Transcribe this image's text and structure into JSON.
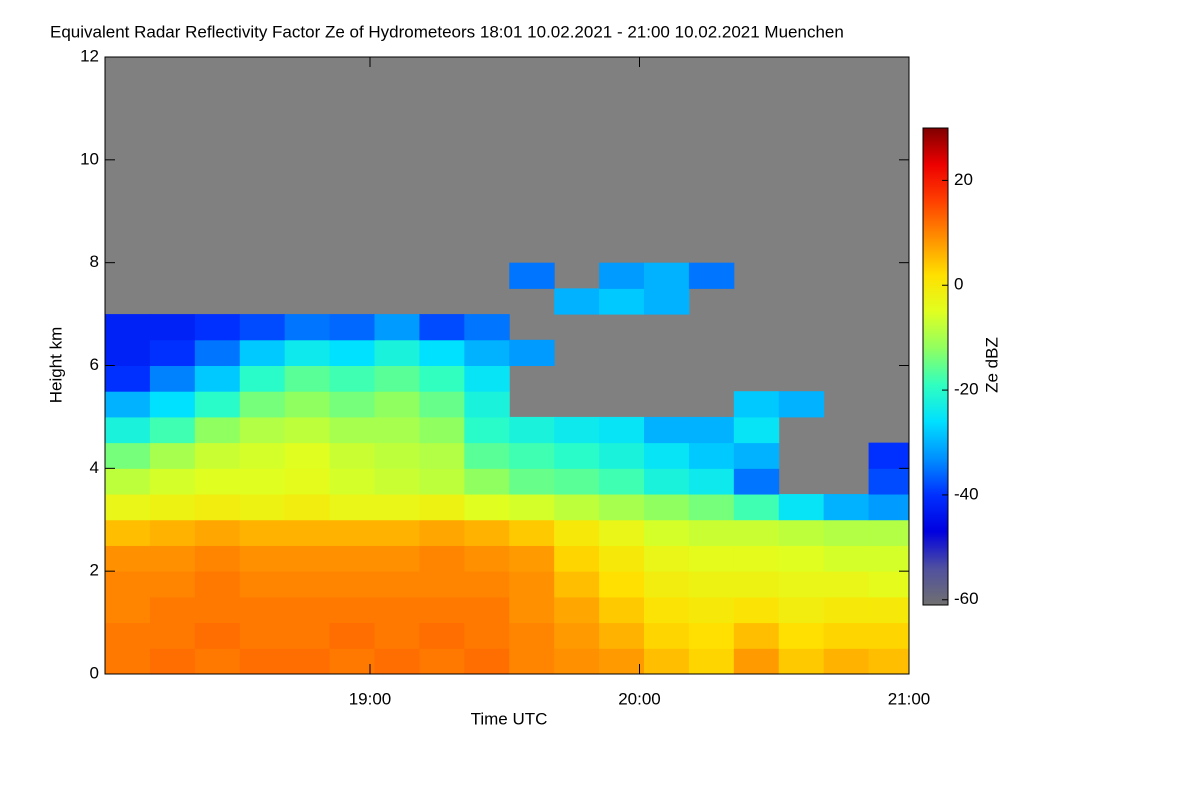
{
  "chart_data": {
    "type": "heatmap",
    "title": "Equivalent Radar Reflectivity Factor Ze of Hydrometeors   18:01 10.02.2021 - 21:00 10.02.2021 Muenchen",
    "xlabel": "Time UTC",
    "ylabel": "Height km",
    "colorbar_label": "Ze dBZ",
    "xlim": [
      1081,
      1260
    ],
    "xticks": [
      {
        "value": 1140,
        "label": "19:00"
      },
      {
        "value": 1200,
        "label": "20:00"
      },
      {
        "value": 1260,
        "label": "21:00"
      }
    ],
    "ylim": [
      0,
      12
    ],
    "yticks": [
      0,
      2,
      4,
      6,
      8,
      10,
      12
    ],
    "clim": [
      -61,
      30
    ],
    "cticks": [
      -60,
      -40,
      -20,
      0,
      20
    ],
    "colormap": [
      "#707070",
      "#5050a0",
      "#0000e0",
      "#0030ff",
      "#0090ff",
      "#00e0ff",
      "#30ffc0",
      "#90ff60",
      "#e0ff20",
      "#ffe000",
      "#ff9000",
      "#ff4000",
      "#ee0000",
      "#800000"
    ],
    "nodata_color": "#808080",
    "x": [
      1086,
      1096,
      1106,
      1116,
      1126,
      1136,
      1146,
      1156,
      1166,
      1176,
      1186,
      1196,
      1206,
      1216,
      1226,
      1236,
      1246,
      1256
    ],
    "y": [
      0.25,
      0.75,
      1.25,
      1.75,
      2.25,
      2.75,
      3.25,
      3.75,
      4.25,
      4.75,
      5.25,
      5.75,
      6.25,
      6.75,
      7.25,
      7.75
    ],
    "values": [
      [
        11,
        12,
        11,
        12,
        12,
        11,
        12,
        11,
        12,
        10,
        9,
        8,
        5,
        3,
        8,
        4,
        6,
        5
      ],
      [
        11,
        11,
        12,
        11,
        11,
        12,
        11,
        12,
        11,
        10,
        8,
        6,
        3,
        2,
        5,
        2,
        3,
        3
      ],
      [
        10,
        11,
        11,
        11,
        11,
        11,
        11,
        11,
        11,
        9,
        7,
        4,
        1,
        0,
        1,
        -1,
        0,
        0
      ],
      [
        10,
        10,
        11,
        10,
        10,
        10,
        10,
        10,
        10,
        9,
        5,
        2,
        -1,
        -2,
        -2,
        -3,
        -3,
        -4
      ],
      [
        9,
        9,
        10,
        9,
        9,
        9,
        9,
        10,
        9,
        8,
        3,
        0,
        -3,
        -4,
        -4,
        -5,
        -6,
        -6
      ],
      [
        5,
        6,
        7,
        6,
        6,
        6,
        6,
        7,
        6,
        4,
        0,
        -3,
        -6,
        -7,
        -7,
        -8,
        -9,
        -9
      ],
      [
        -3,
        -2,
        -1,
        -2,
        -1,
        -3,
        -3,
        -2,
        -5,
        -6,
        -8,
        -10,
        -12,
        -14,
        -18,
        -25,
        -30,
        -32
      ],
      [
        -8,
        -6,
        -5,
        -5,
        -4,
        -6,
        -7,
        -8,
        -12,
        -15,
        -16,
        -18,
        -22,
        -24,
        -35,
        null,
        null,
        -38
      ],
      [
        -14,
        -10,
        -7,
        -6,
        -5,
        -7,
        -8,
        -9,
        -16,
        -18,
        -20,
        -22,
        -25,
        -28,
        -30,
        null,
        null,
        -40
      ],
      [
        -22,
        -18,
        -12,
        -9,
        -8,
        -10,
        -10,
        -12,
        -20,
        -22,
        -24,
        -25,
        -30,
        -30,
        -25,
        null,
        null,
        null
      ],
      [
        -30,
        -26,
        -20,
        -14,
        -12,
        -14,
        -12,
        -15,
        -22,
        null,
        null,
        null,
        null,
        null,
        -28,
        -30,
        null,
        null
      ],
      [
        -40,
        -34,
        -28,
        -20,
        -16,
        -18,
        -16,
        -19,
        -25,
        null,
        null,
        null,
        null,
        null,
        null,
        null,
        null,
        null
      ],
      [
        -42,
        -40,
        -35,
        -28,
        -24,
        -26,
        -22,
        -26,
        -30,
        -32,
        null,
        null,
        null,
        null,
        null,
        null,
        null,
        null
      ],
      [
        -42,
        -42,
        -40,
        -38,
        -35,
        -36,
        -32,
        -38,
        -35,
        null,
        null,
        null,
        null,
        null,
        null,
        null,
        null,
        null
      ],
      [
        null,
        null,
        null,
        null,
        null,
        null,
        null,
        null,
        null,
        null,
        -30,
        -28,
        -30,
        null,
        null,
        null,
        null,
        null
      ],
      [
        null,
        null,
        null,
        null,
        null,
        null,
        null,
        null,
        null,
        -35,
        null,
        -32,
        -30,
        -35,
        null,
        null,
        null,
        null
      ]
    ]
  }
}
